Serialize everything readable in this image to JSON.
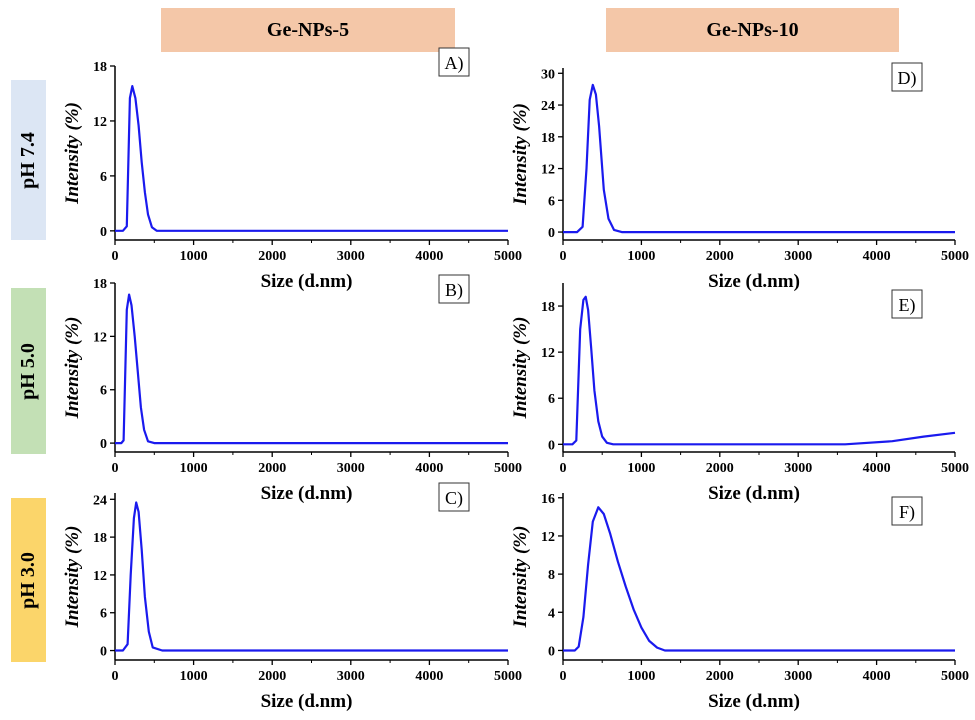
{
  "columns": [
    "Ge-NPs-5",
    "Ge-NPs-10"
  ],
  "rows": [
    {
      "label": "pH 7.4",
      "color": "#dce6f4"
    },
    {
      "label": "pH 5.0",
      "color": "#c3e0b5"
    },
    {
      "label": "pH 3.0",
      "color": "#fbd56a"
    }
  ],
  "header_color": "#f4c7a8",
  "line_color": "#1a1aee",
  "chart_data": [
    {
      "panel": "A)",
      "type": "line",
      "xlabel": "Size (d.nm)",
      "ylabel": "Intensity (%)",
      "xlim": [
        0,
        5000
      ],
      "ylim": [
        -1,
        18
      ],
      "xticks": [
        0,
        1000,
        2000,
        3000,
        4000,
        5000
      ],
      "yticks": [
        0,
        6,
        12,
        18
      ],
      "x": [
        0,
        100,
        150,
        190,
        220,
        260,
        300,
        340,
        380,
        420,
        470,
        530,
        600,
        5000
      ],
      "y": [
        0,
        0,
        0.5,
        14.5,
        15.8,
        14.5,
        11.5,
        7.5,
        4.2,
        1.8,
        0.4,
        0,
        0,
        0
      ]
    },
    {
      "panel": "B)",
      "type": "line",
      "xlabel": "Size (d.nm)",
      "ylabel": "Intensity (%)",
      "xlim": [
        0,
        5000
      ],
      "ylim": [
        -1,
        18
      ],
      "xticks": [
        0,
        1000,
        2000,
        3000,
        4000,
        5000
      ],
      "yticks": [
        0,
        6,
        12,
        18
      ],
      "x": [
        0,
        80,
        110,
        150,
        180,
        210,
        250,
        290,
        330,
        370,
        420,
        500,
        5000
      ],
      "y": [
        0,
        0,
        0.3,
        15,
        16.7,
        15.5,
        12,
        8,
        4,
        1.5,
        0.2,
        0,
        0
      ]
    },
    {
      "panel": "C)",
      "type": "line",
      "xlabel": "Size (d.nm)",
      "ylabel": "Intensity (%)",
      "xlim": [
        0,
        5000
      ],
      "ylim": [
        -1.5,
        25
      ],
      "xticks": [
        0,
        1000,
        2000,
        3000,
        4000,
        5000
      ],
      "yticks": [
        0,
        6,
        12,
        18,
        24
      ],
      "x": [
        0,
        100,
        160,
        200,
        240,
        270,
        300,
        340,
        380,
        430,
        480,
        600,
        5000
      ],
      "y": [
        0,
        0,
        1,
        12,
        21,
        23.5,
        22,
        16,
        8.5,
        3,
        0.5,
        0,
        0
      ]
    },
    {
      "panel": "D)",
      "type": "line",
      "xlabel": "Size (d.nm)",
      "ylabel": "Intensity (%)",
      "xlim": [
        0,
        5000
      ],
      "ylim": [
        -1.5,
        31
      ],
      "xticks": [
        0,
        1000,
        2000,
        3000,
        4000,
        5000
      ],
      "yticks": [
        0,
        6,
        12,
        18,
        24,
        30
      ],
      "x": [
        0,
        180,
        250,
        300,
        340,
        380,
        420,
        460,
        520,
        580,
        650,
        750,
        5000
      ],
      "y": [
        0,
        0,
        1,
        12,
        25,
        27.8,
        26,
        20,
        8,
        2.5,
        0.4,
        0,
        0
      ]
    },
    {
      "panel": "E)",
      "type": "line",
      "xlabel": "Size (d.nm)",
      "ylabel": "Intensity (%)",
      "xlim": [
        0,
        5000
      ],
      "ylim": [
        -1,
        21
      ],
      "xticks": [
        0,
        1000,
        2000,
        3000,
        4000,
        5000
      ],
      "yticks": [
        0,
        6,
        12,
        18
      ],
      "x": [
        0,
        120,
        170,
        220,
        260,
        290,
        320,
        360,
        400,
        450,
        500,
        560,
        640,
        3600,
        4200,
        4600,
        5000
      ],
      "y": [
        0,
        0,
        0.5,
        15,
        18.8,
        19.2,
        17.5,
        12.5,
        7,
        3,
        1,
        0.2,
        0,
        0,
        0.4,
        1,
        1.5
      ]
    },
    {
      "panel": "F)",
      "type": "line",
      "xlabel": "Size (d.nm)",
      "ylabel": "Intensity (%)",
      "xlim": [
        0,
        5000
      ],
      "ylim": [
        -1,
        16.5
      ],
      "xticks": [
        0,
        1000,
        2000,
        3000,
        4000,
        5000
      ],
      "yticks": [
        0,
        4,
        8,
        12,
        16
      ],
      "x": [
        0,
        150,
        200,
        260,
        320,
        380,
        450,
        520,
        600,
        700,
        800,
        900,
        1000,
        1100,
        1200,
        1300,
        5000
      ],
      "y": [
        0,
        0,
        0.4,
        3.5,
        9,
        13.5,
        15,
        14.3,
        12.3,
        9.3,
        6.7,
        4.3,
        2.4,
        1,
        0.3,
        0,
        0
      ]
    }
  ]
}
